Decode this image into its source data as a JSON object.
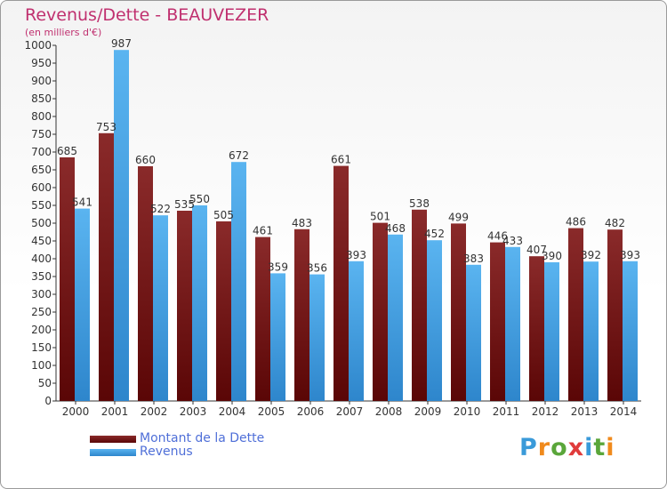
{
  "chart_data": {
    "type": "bar",
    "title": "Revenus/Dette - BEAUVEZER",
    "subtitle": "(en milliers d'€)",
    "categories": [
      "2000",
      "2001",
      "2002",
      "2003",
      "2004",
      "2005",
      "2006",
      "2007",
      "2008",
      "2009",
      "2010",
      "2011",
      "2012",
      "2013",
      "2014"
    ],
    "series": [
      {
        "name": "Montant de la Dette",
        "color": "#7a1a1a",
        "values": [
          685,
          753,
          660,
          535,
          505,
          461,
          483,
          661,
          501,
          538,
          499,
          446,
          407,
          486,
          482
        ]
      },
      {
        "name": "Revenus",
        "color": "#3a9ae0",
        "values": [
          541,
          987,
          522,
          550,
          672,
          359,
          356,
          393,
          468,
          452,
          383,
          433,
          390,
          392,
          393
        ]
      }
    ],
    "ylim": [
      0,
      1000
    ],
    "ytick_step": 50,
    "grid": false,
    "legend_position": "bottom-left"
  },
  "logo": {
    "text": "Proxiti"
  }
}
